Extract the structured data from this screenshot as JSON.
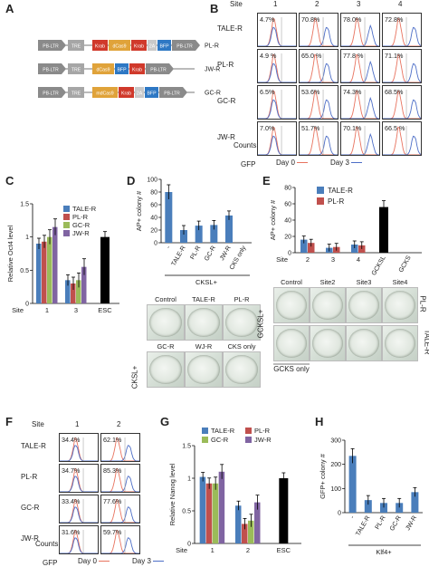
{
  "panels": {
    "a": "A",
    "b": "B",
    "c": "C",
    "d": "D",
    "e": "E",
    "f": "F",
    "g": "G",
    "h": "H"
  },
  "constructs": [
    {
      "name": "PL-R",
      "parts": [
        "PB-LTR",
        "TRE",
        "Krab",
        "dCas9",
        "Krab",
        "2A",
        "BFP",
        "PB-LTR"
      ]
    },
    {
      "name": "JW-R",
      "parts": [
        "PB-LTR",
        "TRE",
        "dCas9",
        "BFP",
        "Krab",
        "PB-LTR"
      ]
    },
    {
      "name": "GC-R",
      "parts": [
        "PB-LTR",
        "TRE",
        "mdCas9",
        "Krab",
        "2A",
        "BFP",
        "PB-LTR"
      ]
    }
  ],
  "panel_b": {
    "site_label": "Site",
    "sites": [
      "1",
      "2",
      "3",
      "4"
    ],
    "rows": [
      {
        "name": "TALE-R",
        "pcts": [
          "4.7%",
          "70.8%",
          "78.0%",
          "72.8%"
        ]
      },
      {
        "name": "PL-R",
        "pcts": [
          "4.9 %",
          "65.0 %",
          "77.8 %",
          "71.1%"
        ]
      },
      {
        "name": "GC-R",
        "pcts": [
          "6.5%",
          "53.6%",
          "74.3%",
          "68.5%"
        ]
      },
      {
        "name": "JW-R",
        "pcts": [
          "7.0%",
          "51.7%",
          "70.1%",
          "66.5 %"
        ]
      }
    ],
    "ylabel": "Counts",
    "xlabel": "GFP",
    "legend": [
      "Day 0",
      "Day 3"
    ]
  },
  "panel_f": {
    "site_label": "Site",
    "sites": [
      "1",
      "2"
    ],
    "rows": [
      {
        "name": "TALE-R",
        "pcts": [
          "34.4%",
          "62.1%"
        ]
      },
      {
        "name": "PL-R",
        "pcts": [
          "34.7%",
          "85.3%"
        ]
      },
      {
        "name": "GC-R",
        "pcts": [
          "33.4%",
          "77.6%"
        ]
      },
      {
        "name": "JW-R",
        "pcts": [
          "31.6%",
          "59.7%"
        ]
      }
    ],
    "ylabel": "Counts",
    "xlabel": "GFP",
    "legend": [
      "Day 0",
      "Day 3"
    ]
  },
  "panel_d_plates": {
    "group_label": "CKSL+",
    "labels": [
      "Control",
      "TALE-R",
      "PL-R",
      "GC-R",
      "WJ-R",
      "CKS only"
    ]
  },
  "panel_e_plates": {
    "labels": [
      "Control",
      "Site2",
      "Site3",
      "Site4"
    ],
    "side_left": "GCKSL+",
    "side_right_top": "PL-R",
    "side_right_bottom": "TALE-R",
    "gcks_only": "GCKS only"
  },
  "colors": {
    "tale": "#4a7ebb",
    "pl": "#c0504d",
    "gc": "#9bbb59",
    "jw": "#8064a2",
    "black": "#000000",
    "day0": "#e8735f",
    "day3": "#4d6ec7"
  },
  "chart_data": [
    {
      "id": "C",
      "type": "bar",
      "ylabel": "Relative Oct4 level",
      "xlabel": "Site",
      "categories": [
        "1",
        "3",
        "ESC"
      ],
      "ylim": [
        0,
        1.5
      ],
      "yticks": [
        "0",
        "0.5",
        "1",
        "1.5"
      ],
      "series": [
        {
          "name": "TALE-R",
          "values": [
            0.9,
            0.35,
            null
          ]
        },
        {
          "name": "PL-R",
          "values": [
            0.93,
            0.3,
            null
          ]
        },
        {
          "name": "GC-R",
          "values": [
            1.0,
            0.35,
            null
          ]
        },
        {
          "name": "JW-R",
          "values": [
            1.15,
            0.55,
            null
          ]
        },
        {
          "name": "ESC",
          "values": [
            null,
            null,
            1.0
          ]
        }
      ]
    },
    {
      "id": "D",
      "type": "bar",
      "ylabel": "AP+ colony #",
      "categories": [
        "-",
        "TALE-R",
        "PL-R",
        "GC-R",
        "JW-R",
        "CKS only"
      ],
      "values": [
        80,
        20,
        27,
        28,
        43,
        0
      ],
      "ylim": [
        0,
        100
      ],
      "yticks": [
        "0",
        "20",
        "40",
        "60",
        "80",
        "100"
      ],
      "group_label": "CKSL+"
    },
    {
      "id": "E",
      "type": "bar",
      "ylabel": "AP+ colony #",
      "categories": [
        "2",
        "3",
        "4",
        "GCKSL",
        "GCKS"
      ],
      "xlabel": "Site",
      "ylim": [
        0,
        80
      ],
      "yticks": [
        "0",
        "20",
        "40",
        "60",
        "80"
      ],
      "series": [
        {
          "name": "TALE-R",
          "values": [
            16,
            6,
            10,
            null,
            null
          ]
        },
        {
          "name": "PL-R",
          "values": [
            12,
            7,
            9,
            null,
            null
          ]
        },
        {
          "name": "GCKSL",
          "values": [
            null,
            null,
            null,
            56,
            0
          ]
        }
      ]
    },
    {
      "id": "G",
      "type": "bar",
      "ylabel": "Relative Nanog level",
      "xlabel": "Site",
      "categories": [
        "1",
        "2",
        "ESC"
      ],
      "ylim": [
        0,
        1.5
      ],
      "yticks": [
        "0",
        "0.5",
        "1",
        "1.5"
      ],
      "series": [
        {
          "name": "TALE-R",
          "values": [
            1.02,
            0.58,
            null
          ]
        },
        {
          "name": "PL-R",
          "values": [
            0.92,
            0.3,
            null
          ]
        },
        {
          "name": "GC-R",
          "values": [
            0.92,
            0.35,
            null
          ]
        },
        {
          "name": "JW-R",
          "values": [
            1.1,
            0.63,
            null
          ]
        },
        {
          "name": "ESC",
          "values": [
            null,
            null,
            1.0
          ]
        }
      ]
    },
    {
      "id": "H",
      "type": "bar",
      "ylabel": "GFP+ colony #",
      "categories": [
        "-",
        "TALE-R",
        "PL-R",
        "GC-R",
        "JW-R"
      ],
      "values": [
        235,
        52,
        40,
        40,
        85
      ],
      "ylim": [
        0,
        300
      ],
      "yticks": [
        "0",
        "100",
        "200",
        "300"
      ],
      "group_label": "Klf4+"
    }
  ]
}
